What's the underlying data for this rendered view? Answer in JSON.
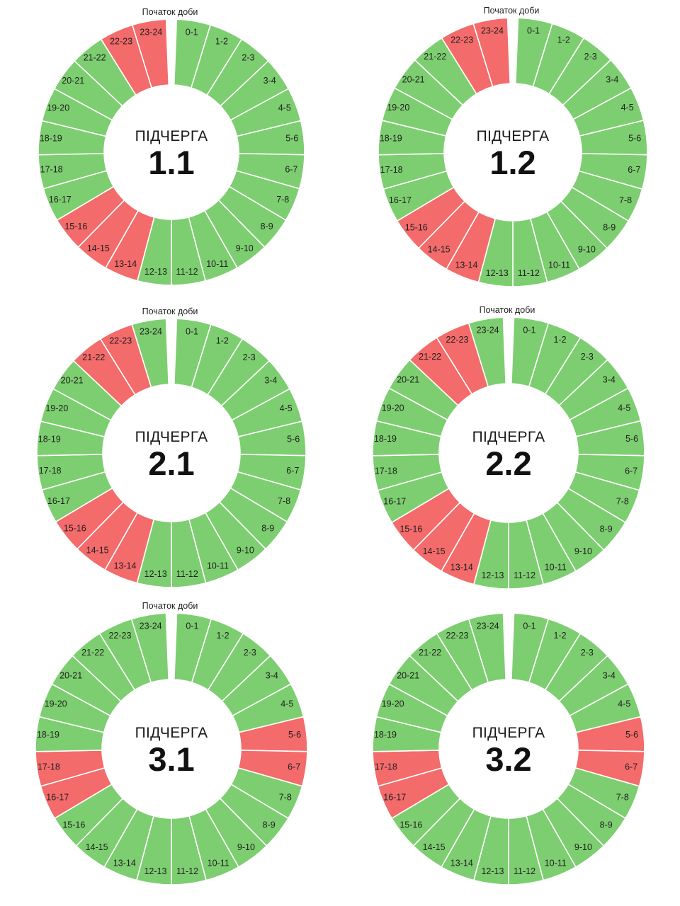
{
  "start_label": "Початок доби",
  "title_word": "ПІДЧЕРГА",
  "colors": {
    "on": "#7dce70",
    "off": "#f46b6b",
    "separator": "#ffffff",
    "background": "#ffffff"
  },
  "segment_labels": [
    "0-1",
    "1-2",
    "2-3",
    "3-4",
    "4-5",
    "5-6",
    "6-7",
    "7-8",
    "8-9",
    "9-10",
    "10-11",
    "11-12",
    "12-13",
    "13-14",
    "14-15",
    "15-16",
    "16-17",
    "17-18",
    "18-19",
    "19-20",
    "20-21",
    "21-22",
    "22-23",
    "23-24"
  ],
  "queues": [
    {
      "name": "1.1",
      "show_start_label": true,
      "off_hours": [
        13,
        14,
        15,
        22,
        23
      ]
    },
    {
      "name": "1.2",
      "show_start_label": true,
      "off_hours": [
        13,
        14,
        15,
        22,
        23
      ]
    },
    {
      "name": "2.1",
      "show_start_label": true,
      "off_hours": [
        13,
        14,
        15,
        21,
        22
      ]
    },
    {
      "name": "2.2",
      "show_start_label": true,
      "off_hours": [
        13,
        14,
        15,
        21,
        22
      ]
    },
    {
      "name": "3.1",
      "show_start_label": true,
      "off_hours": [
        5,
        6,
        16,
        17
      ]
    },
    {
      "name": "3.2",
      "show_start_label": false,
      "off_hours": [
        5,
        6,
        16,
        17
      ]
    }
  ]
}
